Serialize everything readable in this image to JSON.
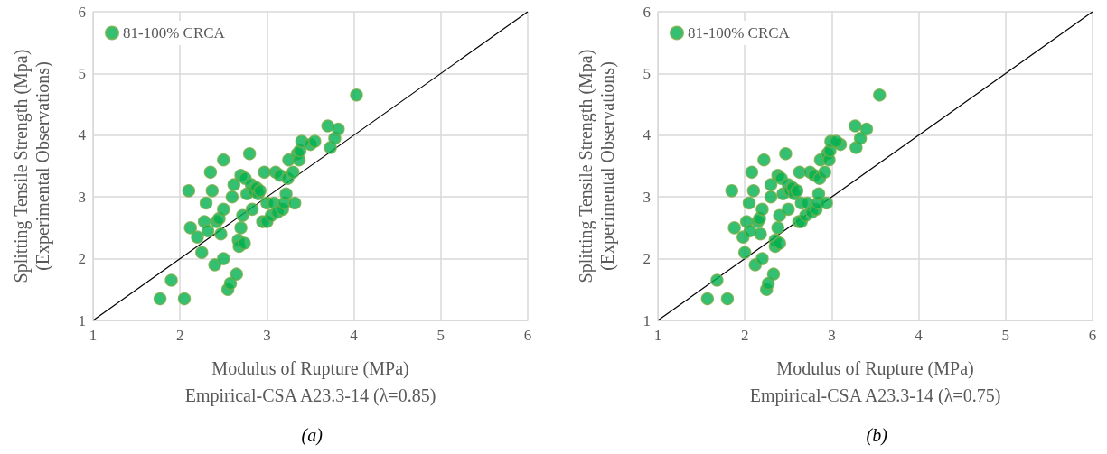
{
  "chart_data": [
    {
      "type": "scatter",
      "xlabel": "Modulus of Rupture (MPa)\nEmpirical-CSA A23.3-14 (λ=0.85)",
      "ylabel": "Splitting Tensile Strength (Mpa)\n(Experimental Observations)",
      "xlim": [
        1,
        6
      ],
      "ylim": [
        1,
        6
      ],
      "xticks": [
        1,
        2,
        3,
        4,
        5,
        6
      ],
      "yticks": [
        1,
        2,
        3,
        4,
        5,
        6
      ],
      "grid": true,
      "legend": "top left",
      "marker": "circle",
      "annotations": [
        "(a)"
      ],
      "series": [
        {
          "name": "81-100% CRCA",
          "color": "#00b050",
          "x": [
            1.77,
            1.9,
            2.05,
            2.1,
            2.12,
            2.2,
            2.25,
            2.28,
            2.3,
            2.32,
            2.35,
            2.37,
            2.4,
            2.42,
            2.45,
            2.47,
            2.5,
            2.5,
            2.5,
            2.55,
            2.58,
            2.6,
            2.62,
            2.65,
            2.67,
            2.68,
            2.7,
            2.7,
            2.72,
            2.74,
            2.75,
            2.77,
            2.8,
            2.82,
            2.83,
            2.85,
            2.88,
            2.9,
            2.92,
            2.95,
            2.97,
            3.0,
            3.0,
            3.05,
            3.08,
            3.1,
            3.12,
            3.15,
            3.18,
            3.2,
            3.22,
            3.24,
            3.25,
            3.3,
            3.32,
            3.35,
            3.37,
            3.38,
            3.4,
            3.5,
            3.55,
            3.7,
            3.73,
            3.78,
            3.82,
            4.03
          ],
          "values": [
            1.35,
            1.65,
            1.35,
            3.1,
            2.5,
            2.35,
            2.1,
            2.6,
            2.9,
            2.45,
            3.4,
            3.1,
            1.9,
            2.6,
            2.65,
            2.4,
            2.0,
            2.8,
            3.6,
            1.5,
            1.6,
            3.0,
            3.2,
            1.75,
            2.3,
            2.2,
            3.35,
            2.5,
            2.7,
            2.25,
            3.3,
            3.05,
            3.7,
            3.2,
            2.8,
            3.1,
            3.15,
            3.05,
            3.1,
            2.6,
            3.4,
            2.6,
            2.9,
            2.7,
            2.9,
            3.4,
            2.75,
            3.35,
            2.8,
            2.9,
            3.05,
            3.3,
            3.6,
            3.4,
            2.9,
            3.7,
            3.6,
            3.75,
            3.9,
            3.85,
            3.9,
            4.15,
            3.8,
            3.95,
            4.1,
            4.65
          ]
        },
        {
          "type": "line",
          "color": "#000000",
          "x": [
            1,
            6
          ],
          "values": [
            1,
            6
          ],
          "marker": "none"
        }
      ]
    },
    {
      "type": "scatter",
      "xlabel": "Modulus of Rupture (MPa)\nEmpirical-CSA A23.3-14 (λ=0.75)",
      "ylabel": "Splitting Tensile Strength (Mpa)\n(Experimental Observations)",
      "xlim": [
        1,
        6
      ],
      "ylim": [
        1,
        6
      ],
      "xticks": [
        1,
        2,
        3,
        4,
        5,
        6
      ],
      "yticks": [
        1,
        2,
        3,
        4,
        5,
        6
      ],
      "grid": true,
      "legend": "top left",
      "marker": "circle",
      "annotations": [
        "(b)"
      ],
      "series": [
        {
          "name": "81-100% CRCA",
          "color": "#00b050",
          "x": [
            1.57,
            1.68,
            1.8,
            1.85,
            1.88,
            1.98,
            2.0,
            2.02,
            2.05,
            2.06,
            2.08,
            2.1,
            2.12,
            2.15,
            2.17,
            2.18,
            2.2,
            2.2,
            2.22,
            2.25,
            2.27,
            2.3,
            2.3,
            2.33,
            2.35,
            2.35,
            2.38,
            2.38,
            2.4,
            2.4,
            2.42,
            2.44,
            2.47,
            2.5,
            2.5,
            2.52,
            2.55,
            2.57,
            2.6,
            2.62,
            2.63,
            2.65,
            2.65,
            2.7,
            2.72,
            2.75,
            2.77,
            2.8,
            2.82,
            2.84,
            2.85,
            2.86,
            2.87,
            2.92,
            2.94,
            2.95,
            2.97,
            2.98,
            2.99,
            3.1,
            3.05,
            3.27,
            3.28,
            3.33,
            3.4,
            3.55
          ],
          "values": [
            1.35,
            1.65,
            1.35,
            3.1,
            2.5,
            2.35,
            2.1,
            2.6,
            2.9,
            2.45,
            3.4,
            3.1,
            1.9,
            2.6,
            2.65,
            2.4,
            2.0,
            2.8,
            3.6,
            1.5,
            1.6,
            3.0,
            3.2,
            1.75,
            2.3,
            2.2,
            3.35,
            2.5,
            2.7,
            2.25,
            3.3,
            3.05,
            3.7,
            3.2,
            2.8,
            3.1,
            3.15,
            3.05,
            3.1,
            2.6,
            3.4,
            2.6,
            2.9,
            2.7,
            2.9,
            3.4,
            2.75,
            3.35,
            2.8,
            2.9,
            3.05,
            3.3,
            3.6,
            3.4,
            2.9,
            3.7,
            3.6,
            3.75,
            3.9,
            3.85,
            3.9,
            4.15,
            3.8,
            3.95,
            4.1,
            4.65
          ]
        },
        {
          "type": "line",
          "color": "#000000",
          "x": [
            1,
            6
          ],
          "values": [
            1,
            6
          ],
          "marker": "none"
        }
      ]
    }
  ]
}
